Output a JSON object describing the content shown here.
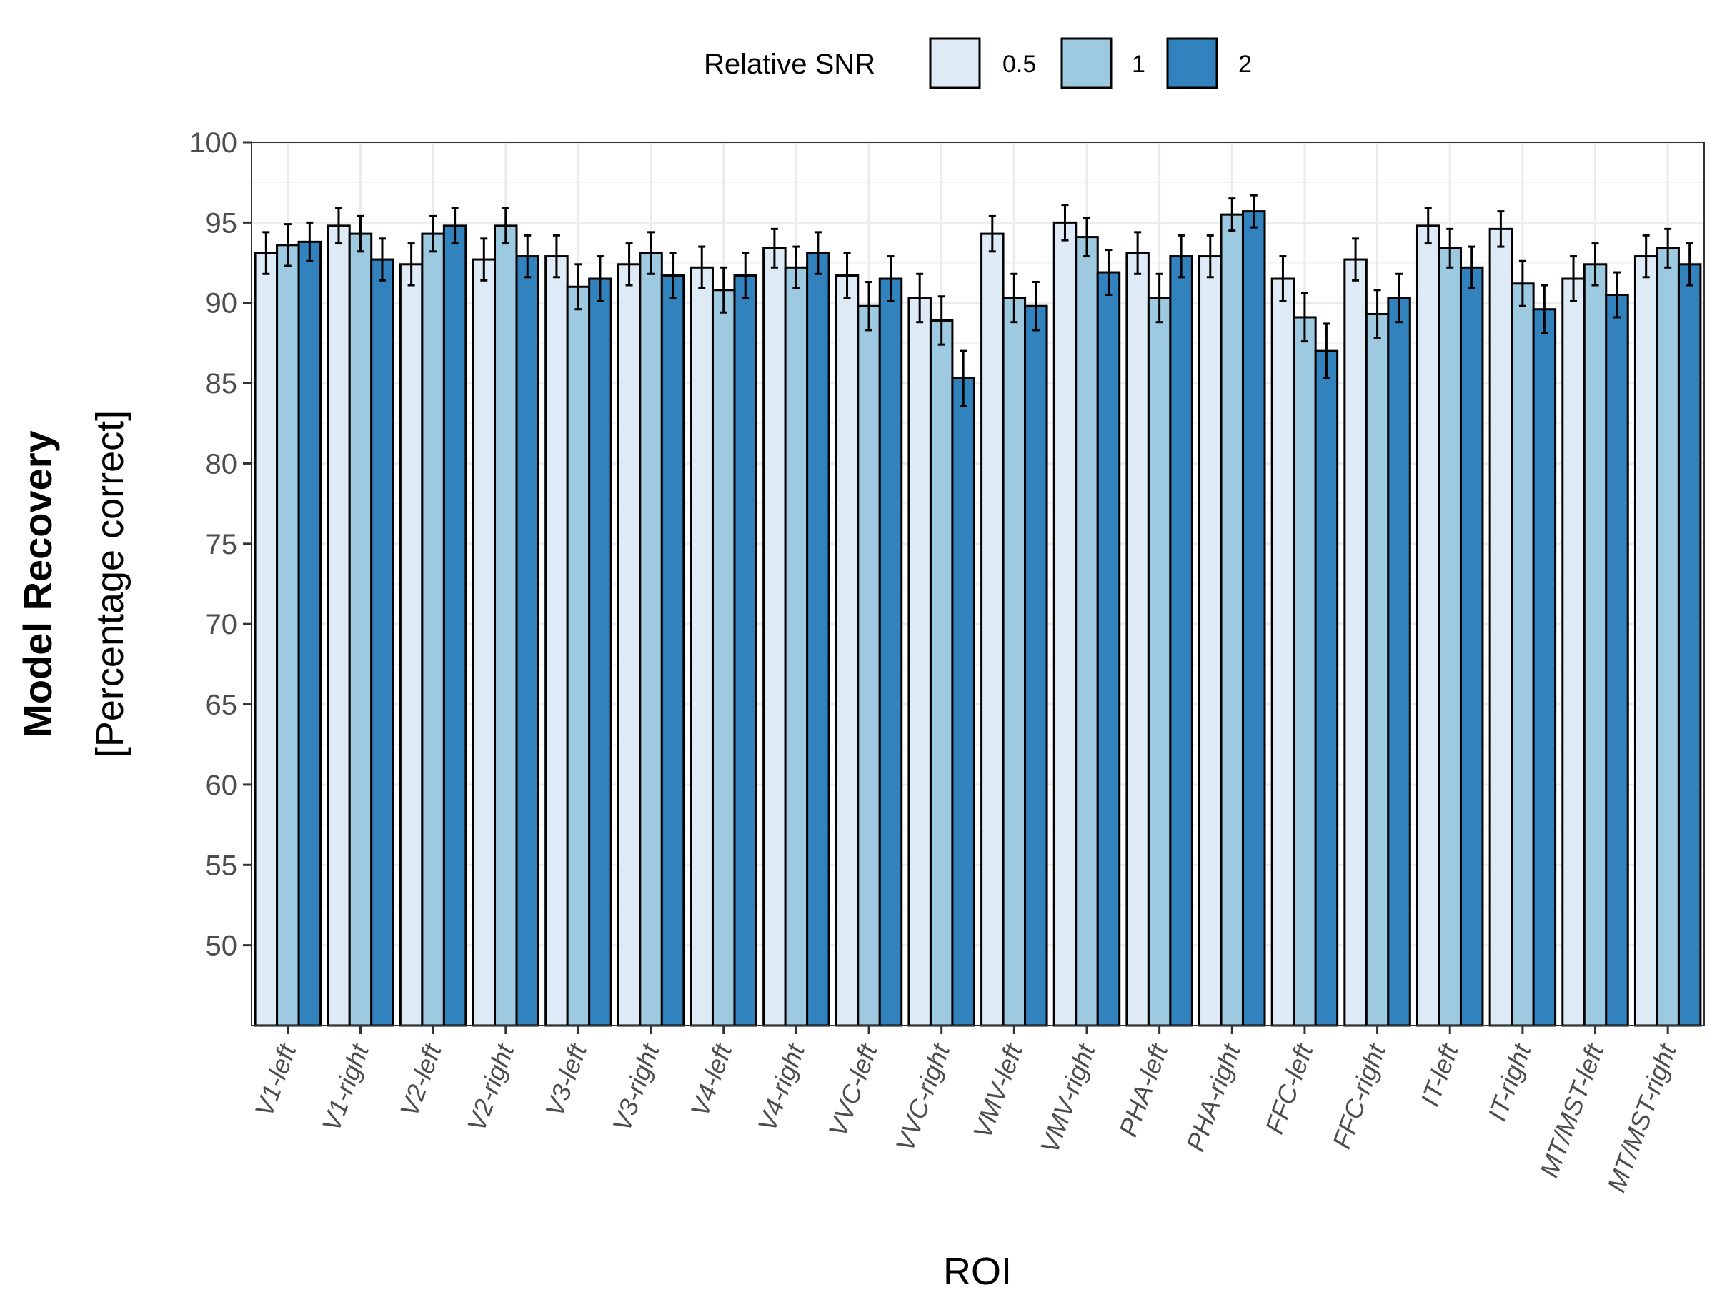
{
  "chart_data": {
    "type": "bar",
    "xlabel": "ROI",
    "ylabel_main": "Model Recovery",
    "ylabel_sub": "[Percentage correct]",
    "ylim": [
      45,
      100
    ],
    "yticks": [
      50,
      55,
      60,
      65,
      70,
      75,
      80,
      85,
      90,
      95,
      100
    ],
    "legend": {
      "title": "Relative SNR",
      "position": "top"
    },
    "grid": true,
    "categories": [
      "V1-left",
      "V1-right",
      "V2-left",
      "V2-right",
      "V3-left",
      "V3-right",
      "V4-left",
      "V4-right",
      "VVC-left",
      "VVC-right",
      "VMV-left",
      "VMV-right",
      "PHA-left",
      "PHA-right",
      "FFC-left",
      "FFC-right",
      "IT-left",
      "IT-right",
      "MT/MST-left",
      "MT/MST-right"
    ],
    "series": [
      {
        "name": "0.5",
        "color": "#deebf7",
        "values": [
          93.1,
          94.8,
          92.4,
          92.7,
          92.9,
          92.4,
          92.2,
          93.4,
          91.7,
          90.3,
          94.3,
          95.0,
          93.1,
          92.9,
          91.5,
          92.7,
          94.8,
          94.6,
          91.5,
          92.9
        ],
        "errors": [
          1.3,
          1.1,
          1.3,
          1.3,
          1.3,
          1.3,
          1.3,
          1.2,
          1.4,
          1.5,
          1.1,
          1.1,
          1.3,
          1.3,
          1.4,
          1.3,
          1.1,
          1.1,
          1.4,
          1.3
        ]
      },
      {
        "name": "1",
        "color": "#9ecae1",
        "values": [
          93.6,
          94.3,
          94.3,
          94.8,
          91.0,
          93.1,
          90.8,
          92.2,
          89.8,
          88.9,
          90.3,
          94.1,
          90.3,
          95.5,
          89.1,
          89.3,
          93.4,
          91.2,
          92.4,
          93.4
        ],
        "errors": [
          1.3,
          1.1,
          1.1,
          1.1,
          1.4,
          1.3,
          1.4,
          1.3,
          1.5,
          1.5,
          1.5,
          1.2,
          1.5,
          1.0,
          1.5,
          1.5,
          1.2,
          1.4,
          1.3,
          1.2
        ]
      },
      {
        "name": "2",
        "color": "#3182bd",
        "values": [
          93.8,
          92.7,
          94.8,
          92.9,
          91.5,
          91.7,
          91.7,
          93.1,
          91.5,
          85.3,
          89.8,
          91.9,
          92.9,
          95.7,
          87.0,
          90.3,
          92.2,
          89.6,
          90.5,
          92.4
        ],
        "errors": [
          1.2,
          1.3,
          1.1,
          1.3,
          1.4,
          1.4,
          1.4,
          1.3,
          1.4,
          1.7,
          1.5,
          1.4,
          1.3,
          1.0,
          1.7,
          1.5,
          1.3,
          1.5,
          1.4,
          1.3
        ]
      }
    ]
  }
}
